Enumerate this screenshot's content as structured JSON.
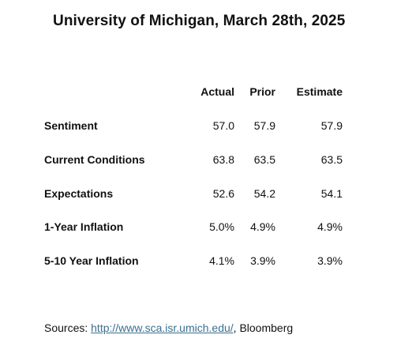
{
  "title": "University of Michigan, March 28th, 2025",
  "columns": [
    "Actual",
    "Prior",
    "Estimate"
  ],
  "rows": [
    {
      "label": "Sentiment",
      "actual": "57.0",
      "prior": "57.9",
      "estimate": "57.9"
    },
    {
      "label": "Current Conditions",
      "actual": "63.8",
      "prior": "63.5",
      "estimate": "63.5"
    },
    {
      "label": "Expectations",
      "actual": "52.6",
      "prior": "54.2",
      "estimate": "54.1"
    },
    {
      "label": "1-Year Inflation",
      "actual": "5.0%",
      "prior": "4.9%",
      "estimate": "4.9%"
    },
    {
      "label": "5-10 Year Inflation",
      "actual": "4.1%",
      "prior": "3.9%",
      "estimate": "3.9%"
    }
  ],
  "footer": {
    "prefix": "Sources: ",
    "link_text": "http://www.sca.isr.umich.edu/",
    "suffix": ", Bloomberg"
  },
  "colors": {
    "text": "#111111",
    "link": "#3a6f8f",
    "background": "#ffffff"
  }
}
